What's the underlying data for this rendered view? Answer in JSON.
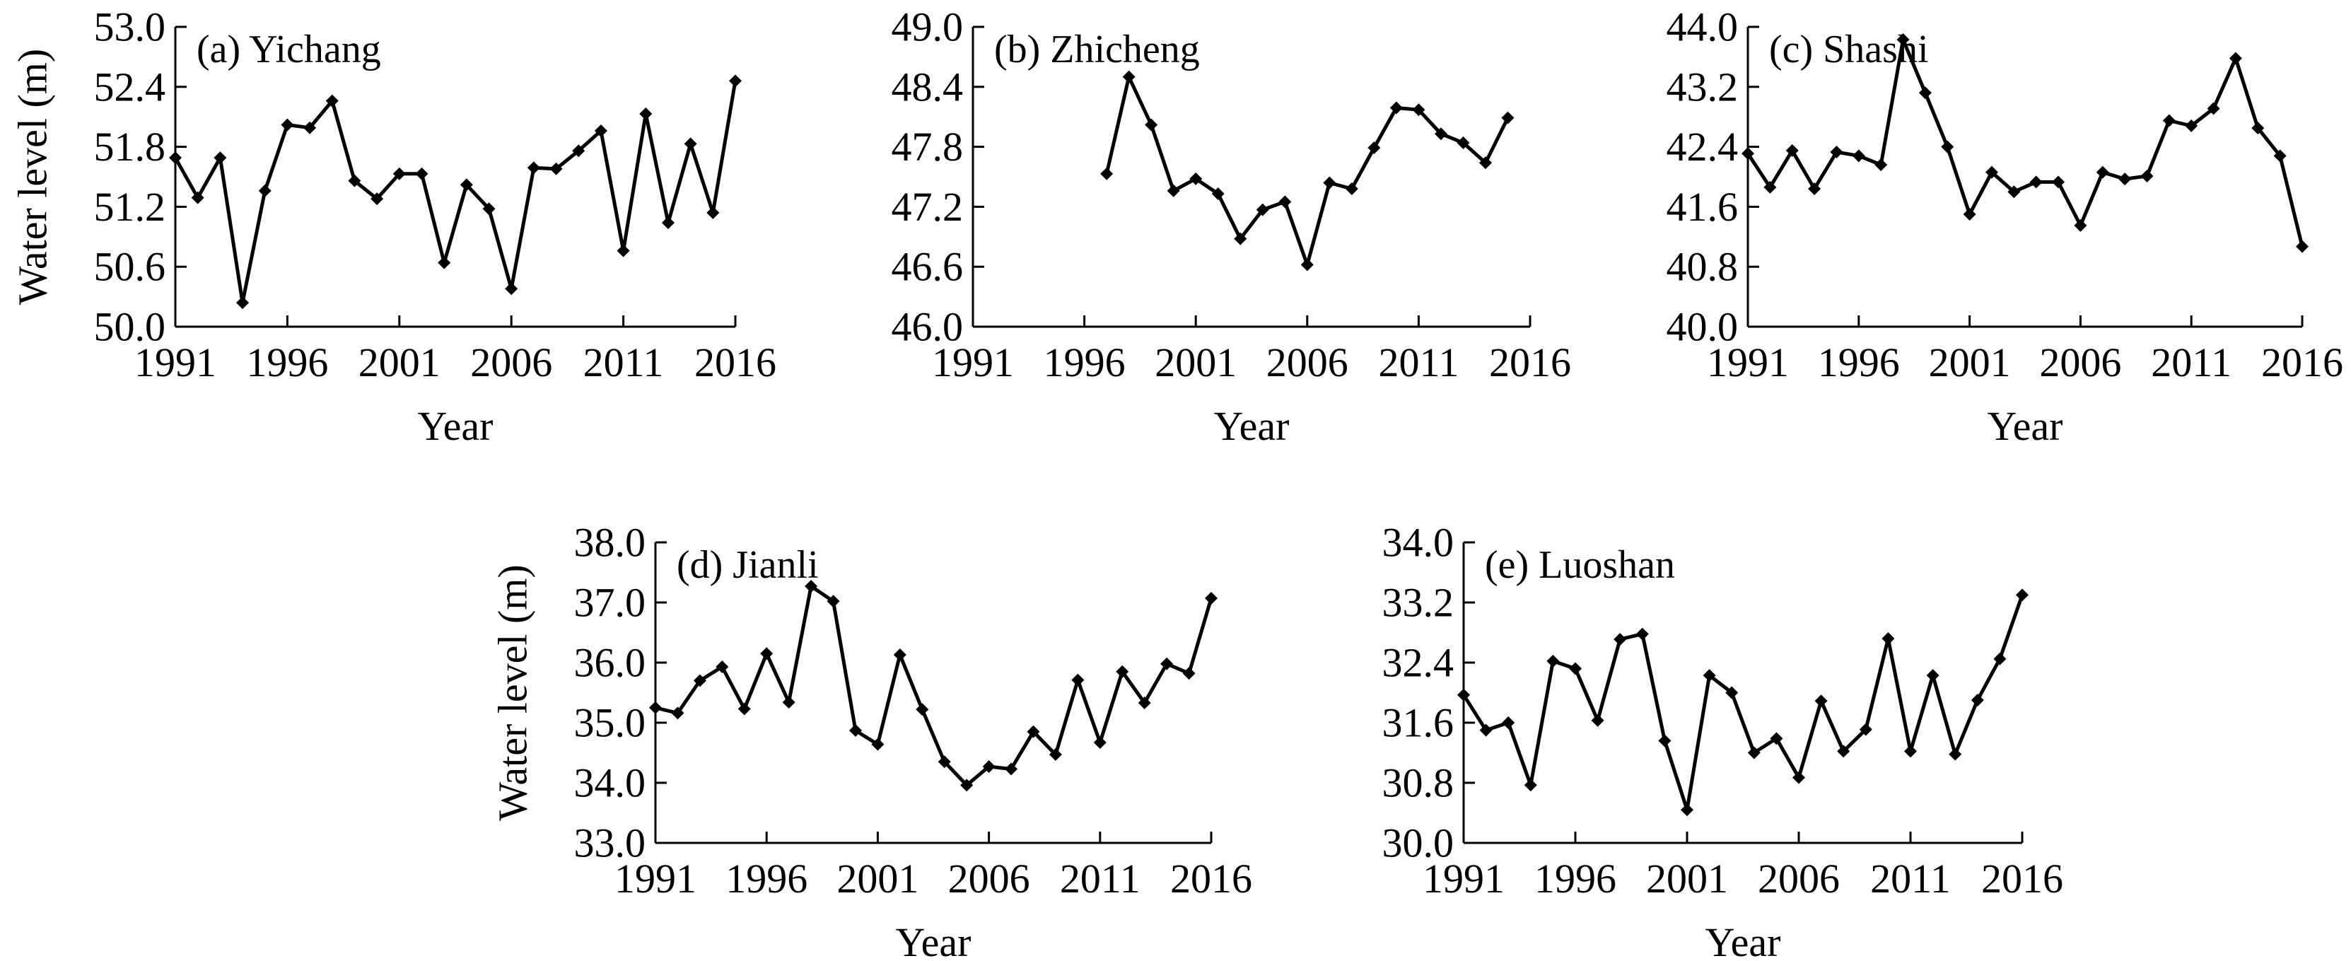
{
  "chart_data": [
    {
      "type": "line",
      "title": "(a) Yichang",
      "xlabel": "Year",
      "ylabel": "Water level (m)",
      "xlim": [
        1991,
        2016
      ],
      "ylim": [
        50.0,
        53.0
      ],
      "xticks": [
        "1991",
        "1996",
        "2001",
        "2006",
        "2011",
        "2016"
      ],
      "yticks": [
        "50.0",
        "50.6",
        "51.2",
        "51.8",
        "52.4",
        "53.0"
      ],
      "x": [
        1991,
        1992,
        1993,
        1994,
        1995,
        1996,
        1997,
        1998,
        1999,
        2000,
        2001,
        2002,
        2003,
        2004,
        2005,
        2006,
        2007,
        2008,
        2009,
        2010,
        2011,
        2012,
        2013,
        2014,
        2015,
        2016
      ],
      "values": [
        51.69,
        51.29,
        51.69,
        50.24,
        51.36,
        52.02,
        51.99,
        52.26,
        51.46,
        51.28,
        51.53,
        51.53,
        50.64,
        51.42,
        51.18,
        50.38,
        51.59,
        51.58,
        51.76,
        51.96,
        50.76,
        52.13,
        51.04,
        51.83,
        51.14,
        52.46
      ],
      "grid": false,
      "marker": "diamond"
    },
    {
      "type": "line",
      "title": "(b) Zhicheng",
      "xlabel": "Year",
      "ylabel": "",
      "xlim": [
        1991,
        2016
      ],
      "ylim": [
        46.0,
        49.0
      ],
      "xticks": [
        "1991",
        "1996",
        "2001",
        "2006",
        "2011",
        "2016"
      ],
      "yticks": [
        "46.0",
        "46.6",
        "47.2",
        "47.8",
        "48.4",
        "49.0"
      ],
      "x": [
        1997,
        1998,
        1999,
        2000,
        2001,
        2002,
        2003,
        2004,
        2005,
        2006,
        2007,
        2008,
        2009,
        2010,
        2011,
        2012,
        2013,
        2014,
        2015
      ],
      "values": [
        47.53,
        48.5,
        48.02,
        47.36,
        47.48,
        47.33,
        46.88,
        47.17,
        47.25,
        46.62,
        47.44,
        47.38,
        47.79,
        48.19,
        48.17,
        47.93,
        47.84,
        47.64,
        48.09
      ],
      "grid": false,
      "marker": "diamond"
    },
    {
      "type": "line",
      "title": "(c) Shashi",
      "xlabel": "Year",
      "ylabel": "",
      "xlim": [
        1991,
        2016
      ],
      "ylim": [
        40.0,
        44.0
      ],
      "xticks": [
        "1991",
        "1996",
        "2001",
        "2006",
        "2011",
        "2016"
      ],
      "yticks": [
        "40.0",
        "40.8",
        "41.6",
        "42.4",
        "43.2",
        "44.0"
      ],
      "x": [
        1991,
        1992,
        1993,
        1994,
        1995,
        1996,
        1997,
        1998,
        1999,
        2000,
        2001,
        2002,
        2003,
        2004,
        2005,
        2006,
        2007,
        2008,
        2009,
        2010,
        2011,
        2012,
        2013,
        2014,
        2015,
        2016
      ],
      "values": [
        42.31,
        41.86,
        42.35,
        41.84,
        42.33,
        42.28,
        42.16,
        43.83,
        43.12,
        42.4,
        41.5,
        42.06,
        41.8,
        41.93,
        41.93,
        41.35,
        42.06,
        41.97,
        42.01,
        42.75,
        42.68,
        42.91,
        43.58,
        42.65,
        42.28,
        41.07
      ],
      "grid": false,
      "marker": "diamond"
    },
    {
      "type": "line",
      "title": "(d) Jianli",
      "xlabel": "Year",
      "ylabel": "Water level (m)",
      "xlim": [
        1991,
        2016
      ],
      "ylim": [
        33.0,
        38.0
      ],
      "xticks": [
        "1991",
        "1996",
        "2001",
        "2006",
        "2011",
        "2016"
      ],
      "yticks": [
        "33.0",
        "34.0",
        "35.0",
        "36.0",
        "37.0",
        "38.0"
      ],
      "x": [
        1991,
        1992,
        1993,
        1994,
        1995,
        1996,
        1997,
        1998,
        1999,
        2000,
        2001,
        2002,
        2003,
        2004,
        2005,
        2006,
        2007,
        2008,
        2009,
        2010,
        2011,
        2012,
        2013,
        2014,
        2015,
        2016
      ],
      "values": [
        35.25,
        35.16,
        35.7,
        35.93,
        35.23,
        36.15,
        35.34,
        37.27,
        37.02,
        34.87,
        34.64,
        36.13,
        35.22,
        34.35,
        33.96,
        34.27,
        34.23,
        34.85,
        34.47,
        35.71,
        34.67,
        35.85,
        35.33,
        35.98,
        35.82,
        37.07
      ],
      "grid": false,
      "marker": "diamond"
    },
    {
      "type": "line",
      "title": "(e) Luoshan",
      "xlabel": "Year",
      "ylabel": "",
      "xlim": [
        1991,
        2016
      ],
      "ylim": [
        30.0,
        34.0
      ],
      "xticks": [
        "1991",
        "1996",
        "2001",
        "2006",
        "2011",
        "2016"
      ],
      "yticks": [
        "30.0",
        "30.8",
        "31.6",
        "32.4",
        "33.2",
        "34.0"
      ],
      "x": [
        1991,
        1992,
        1993,
        1994,
        1995,
        1996,
        1997,
        1998,
        1999,
        2000,
        2001,
        2002,
        2003,
        2004,
        2005,
        2006,
        2007,
        2008,
        2009,
        2010,
        2011,
        2012,
        2013,
        2014,
        2015,
        2016
      ],
      "values": [
        31.97,
        31.5,
        31.6,
        30.77,
        32.42,
        32.32,
        31.63,
        32.71,
        32.78,
        31.36,
        30.44,
        32.23,
        32.0,
        31.2,
        31.39,
        30.87,
        31.89,
        31.22,
        31.51,
        32.72,
        31.22,
        32.23,
        31.18,
        31.9,
        32.45,
        33.3
      ],
      "grid": false,
      "marker": "diamond"
    }
  ]
}
